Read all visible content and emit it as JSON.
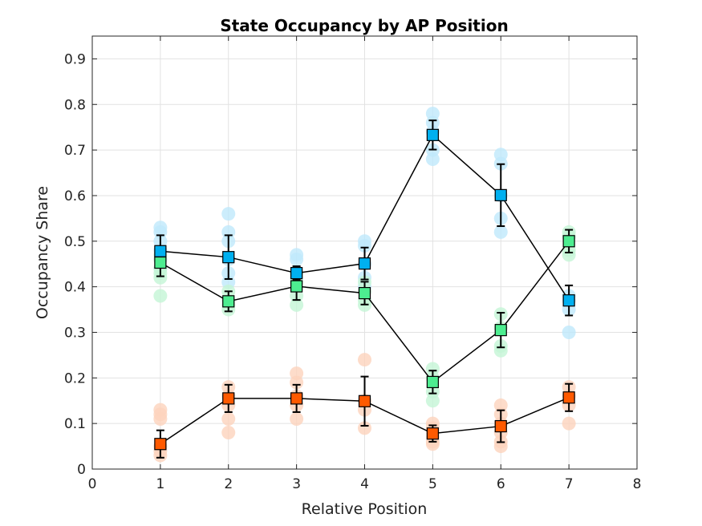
{
  "chart_data": {
    "type": "scatter",
    "title": "State Occupancy by AP Position",
    "xlabel": "Relative Position",
    "ylabel": "Occupancy Share",
    "xlim": [
      0,
      8
    ],
    "ylim": [
      0,
      0.95
    ],
    "xticks": [
      "0",
      "1",
      "2",
      "3",
      "4",
      "5",
      "6",
      "7",
      "8"
    ],
    "yticks": [
      "0",
      "0.1",
      "0.2",
      "0.3",
      "0.4",
      "0.5",
      "0.6",
      "0.7",
      "0.8",
      "0.9"
    ],
    "grid": true,
    "series": [
      {
        "color": "#00b0f0",
        "light_color": "#bfe8fb",
        "x": [
          1,
          2,
          3,
          4,
          5,
          6,
          7
        ],
        "mean": [
          0.478,
          0.465,
          0.43,
          0.451,
          0.733,
          0.601,
          0.37
        ],
        "error": [
          0.035,
          0.048,
          0.015,
          0.035,
          0.032,
          0.068,
          0.033
        ],
        "individual": [
          [
            0.53,
            0.52,
            0.5,
            0.48,
            0.46,
            0.44
          ],
          [
            0.56,
            0.52,
            0.5,
            0.46,
            0.43,
            0.41
          ],
          [
            0.47,
            0.46,
            0.43,
            0.42
          ],
          [
            0.5,
            0.49,
            0.45,
            0.42,
            0.4
          ],
          [
            0.78,
            0.76,
            0.74,
            0.7,
            0.68
          ],
          [
            0.69,
            0.67,
            0.6,
            0.55,
            0.52
          ],
          [
            0.38,
            0.37,
            0.35,
            0.3
          ]
        ]
      },
      {
        "color": "#4ded90",
        "light_color": "#c4f5d6",
        "x": [
          1,
          2,
          3,
          4,
          5,
          6,
          7
        ],
        "mean": [
          0.453,
          0.368,
          0.401,
          0.386,
          0.191,
          0.305,
          0.5
        ],
        "error": [
          0.03,
          0.022,
          0.03,
          0.025,
          0.025,
          0.038,
          0.025
        ],
        "individual": [
          [
            0.47,
            0.46,
            0.44,
            0.43,
            0.42,
            0.38
          ],
          [
            0.39,
            0.37,
            0.36,
            0.35
          ],
          [
            0.43,
            0.41,
            0.38,
            0.36
          ],
          [
            0.41,
            0.39,
            0.37,
            0.36
          ],
          [
            0.22,
            0.2,
            0.17,
            0.15
          ],
          [
            0.34,
            0.31,
            0.27,
            0.26
          ],
          [
            0.52,
            0.51,
            0.48,
            0.47
          ]
        ]
      },
      {
        "color": "#ff5a00",
        "light_color": "#fcd3bd",
        "x": [
          1,
          2,
          3,
          4,
          5,
          6,
          7
        ],
        "mean": [
          0.055,
          0.155,
          0.155,
          0.149,
          0.078,
          0.094,
          0.157
        ],
        "error": [
          0.03,
          0.03,
          0.03,
          0.054,
          0.018,
          0.035,
          0.03
        ],
        "individual": [
          [
            0.13,
            0.12,
            0.11,
            0.05,
            0.04,
            0.03
          ],
          [
            0.18,
            0.16,
            0.14,
            0.11,
            0.08
          ],
          [
            0.21,
            0.19,
            0.16,
            0.14,
            0.11
          ],
          [
            0.24,
            0.15,
            0.13,
            0.09
          ],
          [
            0.1,
            0.09,
            0.08,
            0.07,
            0.06,
            0.055
          ],
          [
            0.14,
            0.12,
            0.1,
            0.08,
            0.06,
            0.05
          ],
          [
            0.18,
            0.16,
            0.14,
            0.1
          ]
        ]
      }
    ]
  }
}
